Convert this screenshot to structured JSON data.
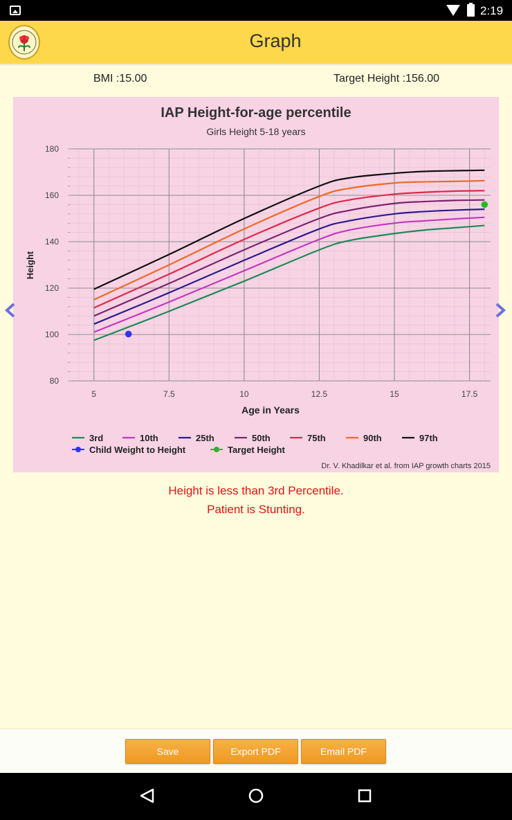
{
  "status_bar": {
    "time": "2:19",
    "icons": [
      "image-icon",
      "wifi-icon",
      "battery-icon"
    ]
  },
  "app_bar": {
    "title": "Graph",
    "logo": "iap-logo"
  },
  "summary": {
    "bmi": "BMI :15.00",
    "target_height": "Target Height :156.00"
  },
  "chart_data": {
    "type": "line",
    "title": "IAP Height-for-age percentile",
    "subtitle": "Girls Height 5-18 years",
    "xlabel": "Age in Years",
    "ylabel": "Height",
    "xlim": [
      4.2,
      18.2
    ],
    "ylim": [
      80,
      180
    ],
    "xticks": [
      5,
      7.5,
      10,
      12.5,
      15,
      17.5
    ],
    "xtick_labels": [
      "5",
      "7.5",
      "10",
      "12.5",
      "15",
      "17.5"
    ],
    "yticks": [
      80,
      100,
      120,
      140,
      160,
      180
    ],
    "ytick_labels": [
      "80",
      "100",
      "120",
      "140",
      "160",
      "180"
    ],
    "grid": true,
    "legend_position": "bottom",
    "x": [
      5,
      7.5,
      10,
      12.5,
      13.5,
      15,
      16,
      17,
      18
    ],
    "series": [
      {
        "name": "3rd",
        "color": "#1b8b57",
        "values": [
          97.5,
          110,
          123,
          136.5,
          140.5,
          143.5,
          145,
          146,
          147
        ]
      },
      {
        "name": "10th",
        "color": "#c238c0",
        "values": [
          101,
          114,
          127.5,
          141,
          145,
          148,
          149,
          149.8,
          150.5
        ]
      },
      {
        "name": "25th",
        "color": "#2e1a8f",
        "values": [
          104.5,
          118,
          132,
          145.5,
          149,
          152,
          153,
          153.6,
          154
        ]
      },
      {
        "name": "50th",
        "color": "#7b2470",
        "values": [
          108,
          122,
          136.5,
          150,
          153.5,
          156.5,
          157.3,
          157.8,
          158
        ]
      },
      {
        "name": "75th",
        "color": "#e0284a",
        "values": [
          111.5,
          126,
          141,
          154.5,
          158,
          160.5,
          161.3,
          161.8,
          162
        ]
      },
      {
        "name": "90th",
        "color": "#ee6a22",
        "values": [
          115,
          130,
          145.5,
          159.5,
          163,
          165.3,
          165.8,
          166,
          166.3
        ]
      },
      {
        "name": "97th",
        "color": "#111111",
        "values": [
          119.5,
          134.5,
          150,
          164,
          167.5,
          169.5,
          170.3,
          170.6,
          170.8
        ]
      }
    ],
    "points": [
      {
        "name": "Child Weight to Height",
        "color": "#3333ee",
        "x": 6.15,
        "y": 100.2
      },
      {
        "name": "Target Height",
        "color": "#22bb22",
        "x": 18,
        "y": 156
      }
    ],
    "credit": "Dr. V. Khadilkar et al. from IAP growth charts 2015"
  },
  "messages": [
    "Height is less than 3rd Percentile.",
    "Patient is Stunting."
  ],
  "buttons": {
    "save": "Save",
    "export_pdf": "Export PDF",
    "email_pdf": "Email PDF"
  },
  "nav_bar": {
    "icons": [
      "back-icon",
      "home-icon",
      "recents-icon"
    ]
  }
}
